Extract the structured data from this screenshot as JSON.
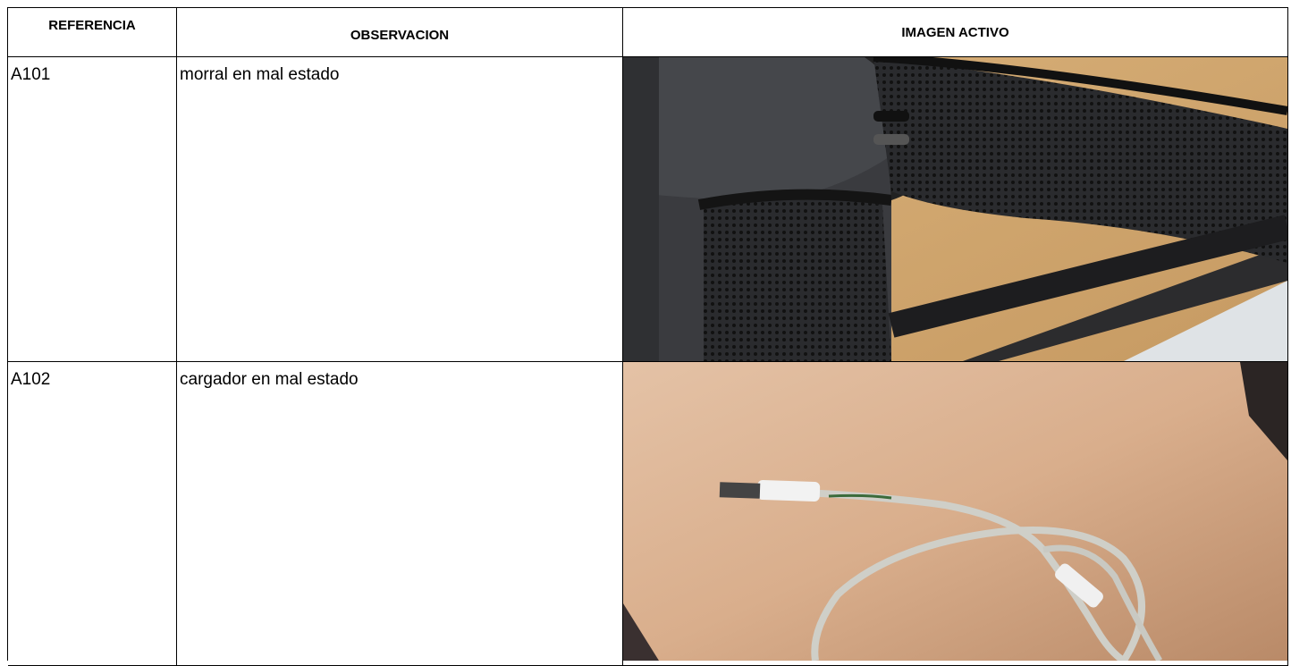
{
  "table": {
    "header": [
      "REFERENCIA",
      "OBSERVACION",
      "IMAGEN ACTIVO"
    ],
    "rows": [
      [
        "A101",
        "morral en mal estado"
      ],
      [
        "A102",
        "cargador en mal estado"
      ]
    ]
  }
}
